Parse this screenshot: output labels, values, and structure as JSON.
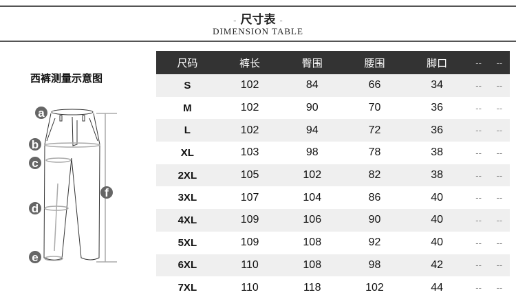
{
  "header": {
    "title": "尺寸表",
    "title_dash": "-",
    "subtitle": "DIMENSION TABLE"
  },
  "figure": {
    "title": "西裤测量示意图",
    "labels": [
      "a",
      "b",
      "c",
      "d",
      "e",
      "f"
    ]
  },
  "table": {
    "columns": [
      "尺码",
      "裤长",
      "臀围",
      "腰围",
      "脚口",
      "--",
      "--"
    ],
    "rows": [
      [
        "S",
        "102",
        "84",
        "66",
        "34",
        "--",
        "--"
      ],
      [
        "M",
        "102",
        "90",
        "70",
        "36",
        "--",
        "--"
      ],
      [
        "L",
        "102",
        "94",
        "72",
        "36",
        "--",
        "--"
      ],
      [
        "XL",
        "103",
        "98",
        "78",
        "38",
        "--",
        "--"
      ],
      [
        "2XL",
        "105",
        "102",
        "82",
        "38",
        "--",
        "--"
      ],
      [
        "3XL",
        "107",
        "104",
        "86",
        "40",
        "--",
        "--"
      ],
      [
        "4XL",
        "109",
        "106",
        "90",
        "40",
        "--",
        "--"
      ],
      [
        "5XL",
        "109",
        "108",
        "92",
        "40",
        "--",
        "--"
      ],
      [
        "6XL",
        "110",
        "108",
        "98",
        "42",
        "--",
        "--"
      ],
      [
        "7XL",
        "110",
        "118",
        "102",
        "44",
        "--",
        "--"
      ]
    ]
  },
  "colors": {
    "header_bg": "#333333",
    "row_alt": "#efefef"
  }
}
